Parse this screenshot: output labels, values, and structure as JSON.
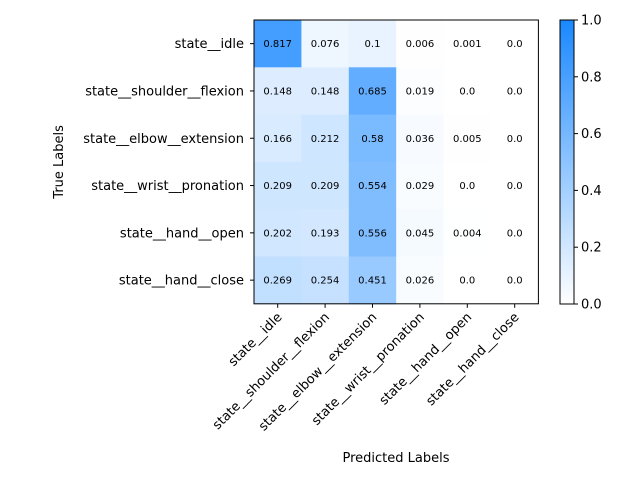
{
  "chart_data": {
    "type": "heatmap",
    "xlabel": "Predicted Labels",
    "ylabel": "True Labels",
    "x_categories": [
      "state__idle",
      "state__shoulder__flexion",
      "state__elbow__extension",
      "state__wrist__pronation",
      "state__hand__open",
      "state__hand__close"
    ],
    "y_categories": [
      "state__idle",
      "state__shoulder__flexion",
      "state__elbow__extension",
      "state__wrist__pronation",
      "state__hand__open",
      "state__hand__close"
    ],
    "values": [
      [
        0.817,
        0.076,
        0.1,
        0.006,
        0.001,
        0.0
      ],
      [
        0.148,
        0.148,
        0.685,
        0.019,
        0.0,
        0.0
      ],
      [
        0.166,
        0.212,
        0.58,
        0.036,
        0.005,
        0.0
      ],
      [
        0.209,
        0.209,
        0.554,
        0.029,
        0.0,
        0.0
      ],
      [
        0.202,
        0.193,
        0.556,
        0.045,
        0.004,
        0.0
      ],
      [
        0.269,
        0.254,
        0.451,
        0.026,
        0.0,
        0.0
      ]
    ],
    "value_labels": [
      [
        "0.817",
        "0.076",
        "0.1",
        "0.006",
        "0.001",
        "0.0"
      ],
      [
        "0.148",
        "0.148",
        "0.685",
        "0.019",
        "0.0",
        "0.0"
      ],
      [
        "0.166",
        "0.212",
        "0.58",
        "0.036",
        "0.005",
        "0.0"
      ],
      [
        "0.209",
        "0.209",
        "0.554",
        "0.029",
        "0.0",
        "0.0"
      ],
      [
        "0.202",
        "0.193",
        "0.556",
        "0.045",
        "0.004",
        "0.0"
      ],
      [
        "0.269",
        "0.254",
        "0.451",
        "0.026",
        "0.0",
        "0.0"
      ]
    ],
    "colorbar": {
      "range": [
        0.0,
        1.0
      ],
      "ticks": [
        "0.0",
        "0.2",
        "0.4",
        "0.6",
        "0.8",
        "1.0"
      ],
      "color_low": "#ffffff",
      "color_high": "#1a88ff"
    }
  }
}
